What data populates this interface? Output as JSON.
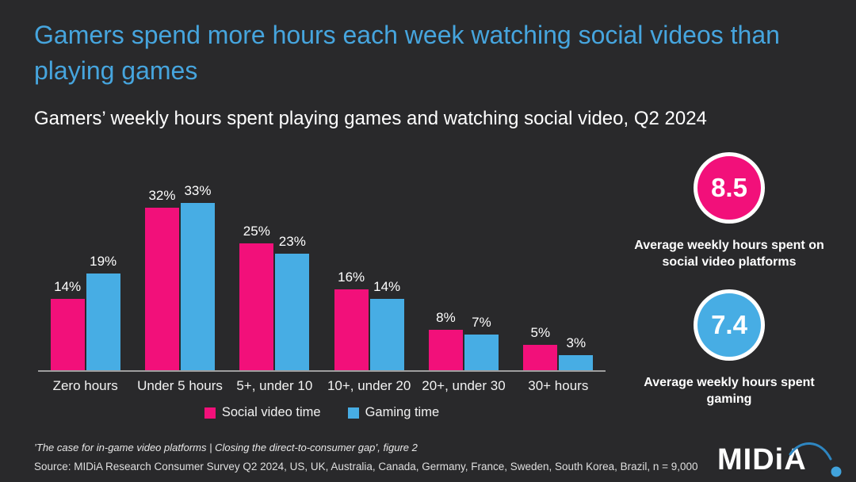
{
  "title": "Gamers spend more hours each week watching social videos than playing games",
  "subtitle": "Gamers’ weekly hours spent playing games and watching social video, Q2 2024",
  "colors": {
    "background": "#29292B",
    "title_blue": "#46A5DE",
    "social_video_pink": "#F2107A",
    "gaming_blue": "#47ADE4",
    "axis_gray": "#9E9E9E",
    "text_white": "#FFFFFF"
  },
  "chart_data": {
    "type": "bar",
    "title": "Gamers’ weekly hours spent playing games and watching social video, Q2 2024",
    "categories": [
      "Zero hours",
      "Under 5 hours",
      "5+, under 10",
      "10+, under 20",
      "20+, under 30",
      "30+ hours"
    ],
    "series": [
      {
        "name": "Social video time",
        "color": "#F2107A",
        "values": [
          14,
          32,
          25,
          16,
          8,
          5
        ]
      },
      {
        "name": "Gaming time",
        "color": "#47ADE4",
        "values": [
          19,
          33,
          23,
          14,
          7,
          3
        ]
      }
    ],
    "value_suffix": "%",
    "xlabel": "",
    "ylabel": "",
    "ylim": [
      0,
      35
    ],
    "grid": false,
    "legend_position": "bottom",
    "data_labels": true
  },
  "stats": [
    {
      "value": "8.5",
      "label": "Average weekly hours spent on social video platforms",
      "color": "#F2107A"
    },
    {
      "value": "7.4",
      "label": "Average weekly hours spent gaming",
      "color": "#47ADE4"
    }
  ],
  "footer": {
    "report_line": "’The case for in-game video platforms | Closing the direct-to-consumer gap’, figure 2",
    "source_line": "Source: MIDiA Research Consumer Survey Q2 2024, US, UK, Australia, Canada, Germany, France, Sweden, South Korea, Brazil, n = 9,000",
    "logo_text": "MIDiA"
  }
}
